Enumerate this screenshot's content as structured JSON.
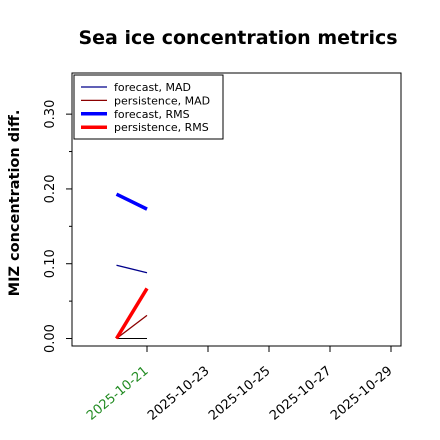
{
  "chart_data": {
    "type": "line",
    "title": "Sea ice concentration metrics",
    "xlabel": "",
    "ylabel": "MIZ concentration diff.",
    "x_ticks": [
      "2025-10-21",
      "2025-10-23",
      "2025-10-25",
      "2025-10-27",
      "2025-10-29"
    ],
    "x_tick_colors": [
      "#228b22",
      "#000000",
      "#000000",
      "#000000",
      "#000000"
    ],
    "y_ticks": [
      "0.00",
      "0.10",
      "0.20",
      "0.30"
    ],
    "ylim": [
      -0.01,
      0.355
    ],
    "grid": false,
    "legend_position": "top-left",
    "series": [
      {
        "name": "forecast, MAD",
        "color": "#00008b",
        "width": "thin",
        "x": [
          "2025-10-20",
          "2025-10-21"
        ],
        "y": [
          0.098,
          0.088
        ]
      },
      {
        "name": "persistence, MAD",
        "color": "#8b0000",
        "width": "thin",
        "x": [
          "2025-10-20",
          "2025-10-21"
        ],
        "y": [
          0.0,
          0.031
        ]
      },
      {
        "name": "forecast, RMS",
        "color": "#0000ff",
        "width": "thick",
        "x": [
          "2025-10-20",
          "2025-10-21"
        ],
        "y": [
          0.193,
          0.173
        ]
      },
      {
        "name": "persistence, RMS",
        "color": "#ff0000",
        "width": "thick",
        "x": [
          "2025-10-20",
          "2025-10-21"
        ],
        "y": [
          0.0,
          0.067
        ]
      }
    ],
    "reference_line": {
      "x": [
        "2025-10-20",
        "2025-10-21"
      ],
      "y": [
        0.0,
        0.0
      ],
      "color": "#000000"
    }
  }
}
